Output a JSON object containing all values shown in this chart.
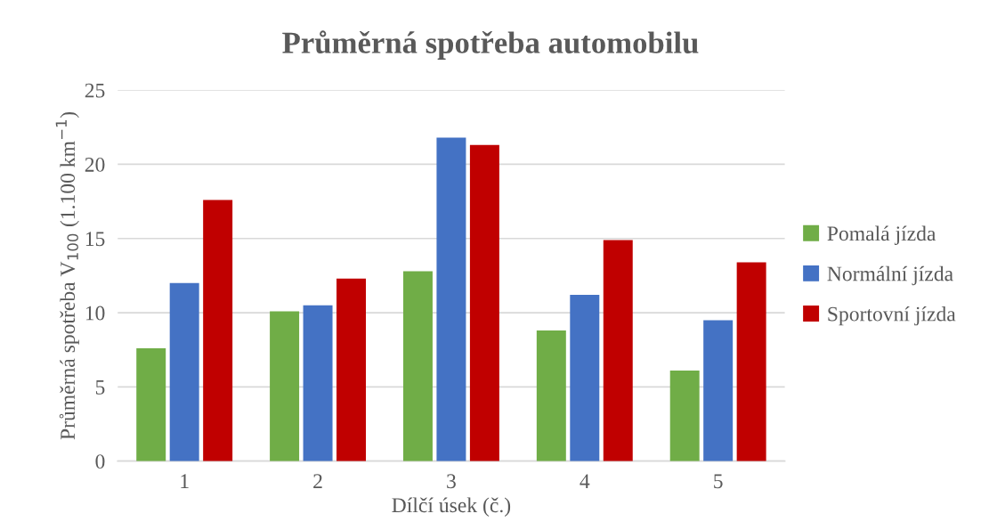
{
  "chart_data": {
    "type": "bar",
    "title": "Průměrná spotřeba automobilu",
    "xlabel": "Dílčí úsek (č.)",
    "ylabel": "Průměrná spotřeba V$_{100}$ (1.100 km$^{−1}$)",
    "categories": [
      "1",
      "2",
      "3",
      "4",
      "5"
    ],
    "series": [
      {
        "name": "Pomalá jízda",
        "color": "#70ad47",
        "values": [
          7.6,
          10.1,
          12.8,
          8.8,
          6.1
        ]
      },
      {
        "name": "Normální jízda",
        "color": "#4472c4",
        "values": [
          12.0,
          10.5,
          21.8,
          11.2,
          9.5
        ]
      },
      {
        "name": "Sportovní jízda",
        "color": "#c00000",
        "values": [
          17.6,
          12.3,
          21.3,
          14.9,
          13.4
        ]
      }
    ],
    "ylim": [
      0,
      25
    ],
    "yticks": [
      0,
      5,
      10,
      15,
      20,
      25
    ],
    "grid": "y",
    "legend": "right"
  }
}
